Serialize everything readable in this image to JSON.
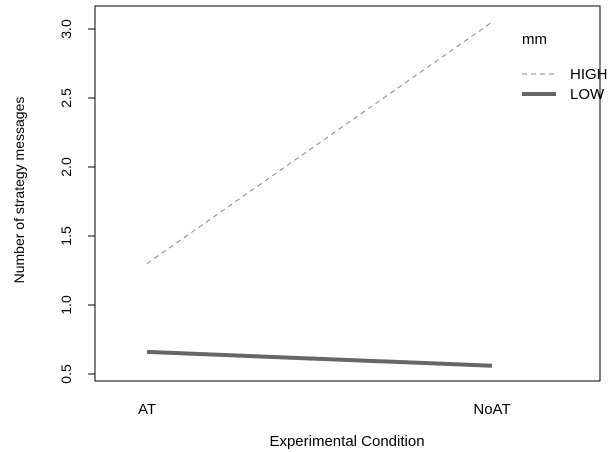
{
  "chart_data": {
    "type": "line",
    "title": "",
    "xlabel": "Experimental Condition",
    "ylabel": "Number of strategy messages",
    "categories": [
      "AT",
      "NoAT"
    ],
    "ylim": [
      0.5,
      3.0
    ],
    "yticks": [
      "0.5",
      "1.0",
      "1.5",
      "2.0",
      "2.5",
      "3.0"
    ],
    "grid": false,
    "legend": {
      "title": "mm",
      "placement": "top-right",
      "entries": [
        "HIGH",
        "LOW"
      ]
    },
    "series": [
      {
        "name": "HIGH",
        "values": [
          1.3,
          3.05
        ],
        "style": "dashed",
        "color": "#888888"
      },
      {
        "name": "LOW",
        "values": [
          0.66,
          0.56
        ],
        "style": "solid",
        "color": "#666666"
      }
    ]
  }
}
